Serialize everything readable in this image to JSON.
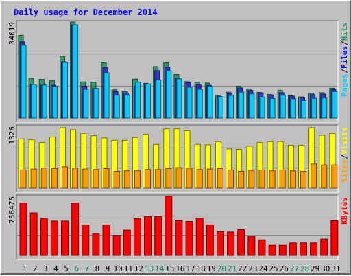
{
  "chart_data": {
    "type": "bar",
    "title": "Daily usage for December 2014",
    "categories": [
      "1",
      "2",
      "3",
      "4",
      "5",
      "6",
      "7",
      "8",
      "9",
      "10",
      "11",
      "12",
      "13",
      "14",
      "15",
      "16",
      "17",
      "18",
      "19",
      "20",
      "21",
      "22",
      "23",
      "24",
      "25",
      "26",
      "27",
      "28",
      "29",
      "30",
      "31"
    ],
    "weekend_days": [
      6,
      7,
      13,
      14,
      20,
      21,
      27,
      28
    ],
    "panels": [
      {
        "id": "hits",
        "ymax_label": "34019",
        "ymax": 34019,
        "legend": [
          "Pages",
          "Files",
          "Hits"
        ],
        "series": [
          {
            "name": "Hits",
            "color": "#339966",
            "values": [
              29300,
              14100,
              13700,
              13200,
              21700,
              34019,
              12800,
              12700,
              19600,
              10000,
              9400,
              13800,
              12300,
              18200,
              19600,
              15400,
              12900,
              12700,
              12400,
              8000,
              9200,
              11300,
              10300,
              9100,
              8400,
              9800,
              8100,
              7500,
              8800,
              9000,
              10600
            ]
          },
          {
            "name": "Files",
            "color": "#3333cc",
            "values": [
              27000,
              11900,
              11700,
              11600,
              19900,
              33000,
              11300,
              10500,
              17900,
              9400,
              8900,
              11300,
              12100,
              16800,
              18000,
              14100,
              12500,
              11900,
              11600,
              7600,
              8700,
              10700,
              9800,
              8800,
              8100,
              9000,
              7800,
              7200,
              8300,
              8500,
              10100
            ]
          },
          {
            "name": "Pages",
            "color": "#00ccff",
            "values": [
              25800,
              11900,
              11700,
              11200,
              19700,
              33000,
              10200,
              10500,
              16000,
              8200,
              8200,
              12700,
              12100,
              13500,
              16700,
              13900,
              10900,
              10200,
              11200,
              7600,
              8000,
              9200,
              8600,
              7400,
              6900,
              8100,
              6800,
              6200,
              7000,
              7100,
              9400
            ]
          }
        ]
      },
      {
        "id": "visits",
        "ymax_label": "1326",
        "ymax": 1326,
        "legend": [
          "Sites",
          "Visits"
        ],
        "series": [
          {
            "name": "Visits",
            "color": "#ffff00",
            "values": [
              1080,
              1060,
              1000,
              1120,
              1326,
              1280,
              1200,
              1150,
              1100,
              1050,
              1050,
              1110,
              1180,
              960,
              1300,
              1300,
              1260,
              960,
              950,
              1020,
              860,
              850,
              920,
              1000,
              1020,
              1020,
              940,
              940,
              1326,
              1160,
              1200
            ]
          },
          {
            "name": "Sites",
            "color": "#ff9900",
            "values": [
              400,
              420,
              440,
              430,
              470,
              440,
              420,
              410,
              430,
              370,
              380,
              380,
              410,
              410,
              430,
              450,
              440,
              410,
              420,
              430,
              400,
              370,
              390,
              400,
              380,
              400,
              380,
              370,
              530,
              510,
              510
            ]
          }
        ]
      },
      {
        "id": "kbytes",
        "ymax_label": "756475",
        "ymax": 756475,
        "legend": [
          "KBytes"
        ],
        "series": [
          {
            "name": "KBytes",
            "color": "#ff0000",
            "values": [
              670000,
              545000,
              475000,
              440000,
              440000,
              670000,
              390000,
              275000,
              390000,
              250000,
              325000,
              475000,
              500000,
              500000,
              756475,
              445000,
              435000,
              475000,
              390000,
              305000,
              300000,
              330000,
              240000,
              200000,
              130000,
              130000,
              160000,
              160000,
              160000,
              210000,
              445000
            ]
          }
        ]
      }
    ]
  }
}
